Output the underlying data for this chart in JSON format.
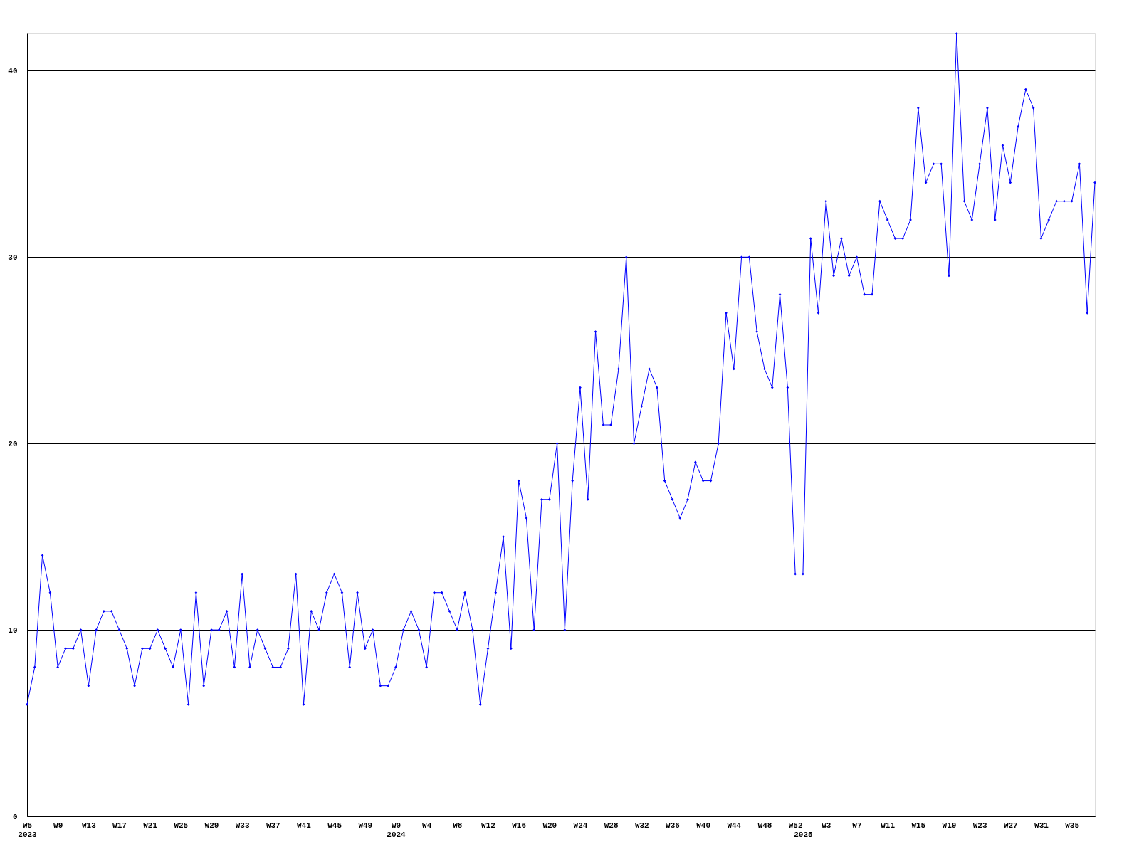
{
  "chart_data": {
    "type": "line",
    "color": "#0000ff",
    "marker": "diamond",
    "grid": "y",
    "ylim": [
      0,
      42
    ],
    "yticks": [
      0,
      10,
      20,
      30,
      40
    ],
    "categories": [
      "W5\n2023",
      null,
      null,
      null,
      "W9",
      null,
      null,
      null,
      "W13",
      null,
      null,
      null,
      "W17",
      null,
      null,
      null,
      "W21",
      null,
      null,
      null,
      "W25",
      null,
      null,
      null,
      "W29",
      null,
      null,
      null,
      "W33",
      null,
      null,
      null,
      "W37",
      null,
      null,
      null,
      "W41",
      null,
      null,
      null,
      "W45",
      null,
      null,
      null,
      "W49",
      null,
      null,
      null,
      "W0\n2024",
      null,
      null,
      null,
      "W4",
      null,
      null,
      null,
      "W8",
      null,
      null,
      null,
      "W12",
      null,
      null,
      null,
      "W16",
      null,
      null,
      null,
      "W20",
      null,
      null,
      null,
      "W24",
      null,
      null,
      null,
      "W28",
      null,
      null,
      null,
      "W32",
      null,
      null,
      null,
      "W36",
      null,
      null,
      null,
      "W40",
      null,
      null,
      null,
      "W44",
      null,
      null,
      null,
      "W48",
      null,
      null,
      null,
      "W52",
      "\n2025",
      null,
      null,
      "W3",
      null,
      null,
      null,
      "W7",
      null,
      null,
      null,
      "W11",
      null,
      null,
      null,
      "W15",
      null,
      null,
      null,
      "W19",
      null,
      null,
      null,
      "W23",
      null,
      null,
      null,
      "W27",
      null,
      null,
      null,
      "W31",
      null,
      null,
      null,
      "W35",
      null,
      null,
      null
    ],
    "values": [
      6,
      8,
      14,
      12,
      8,
      9,
      9,
      10,
      7,
      10,
      11,
      11,
      10,
      9,
      7,
      9,
      9,
      10,
      9,
      8,
      10,
      6,
      12,
      7,
      10,
      10,
      11,
      8,
      13,
      8,
      10,
      9,
      8,
      8,
      9,
      13,
      6,
      11,
      10,
      12,
      13,
      12,
      8,
      12,
      9,
      10,
      7,
      7,
      8,
      10,
      11,
      10,
      8,
      12,
      12,
      11,
      10,
      12,
      10,
      6,
      9,
      12,
      15,
      9,
      18,
      16,
      10,
      17,
      17,
      20,
      10,
      18,
      23,
      17,
      26,
      21,
      21,
      24,
      30,
      20,
      22,
      24,
      23,
      18,
      17,
      16,
      17,
      19,
      18,
      18,
      20,
      27,
      24,
      30,
      30,
      26,
      24,
      23,
      28,
      23,
      13,
      13,
      31,
      27,
      33,
      29,
      31,
      29,
      30,
      28,
      28,
      33,
      32,
      31,
      31,
      32,
      38,
      34,
      35,
      35,
      29,
      42,
      33,
      32,
      35,
      38,
      32,
      36,
      34,
      37,
      39,
      38,
      31,
      32,
      33,
      33,
      33,
      35,
      27,
      34
    ]
  }
}
